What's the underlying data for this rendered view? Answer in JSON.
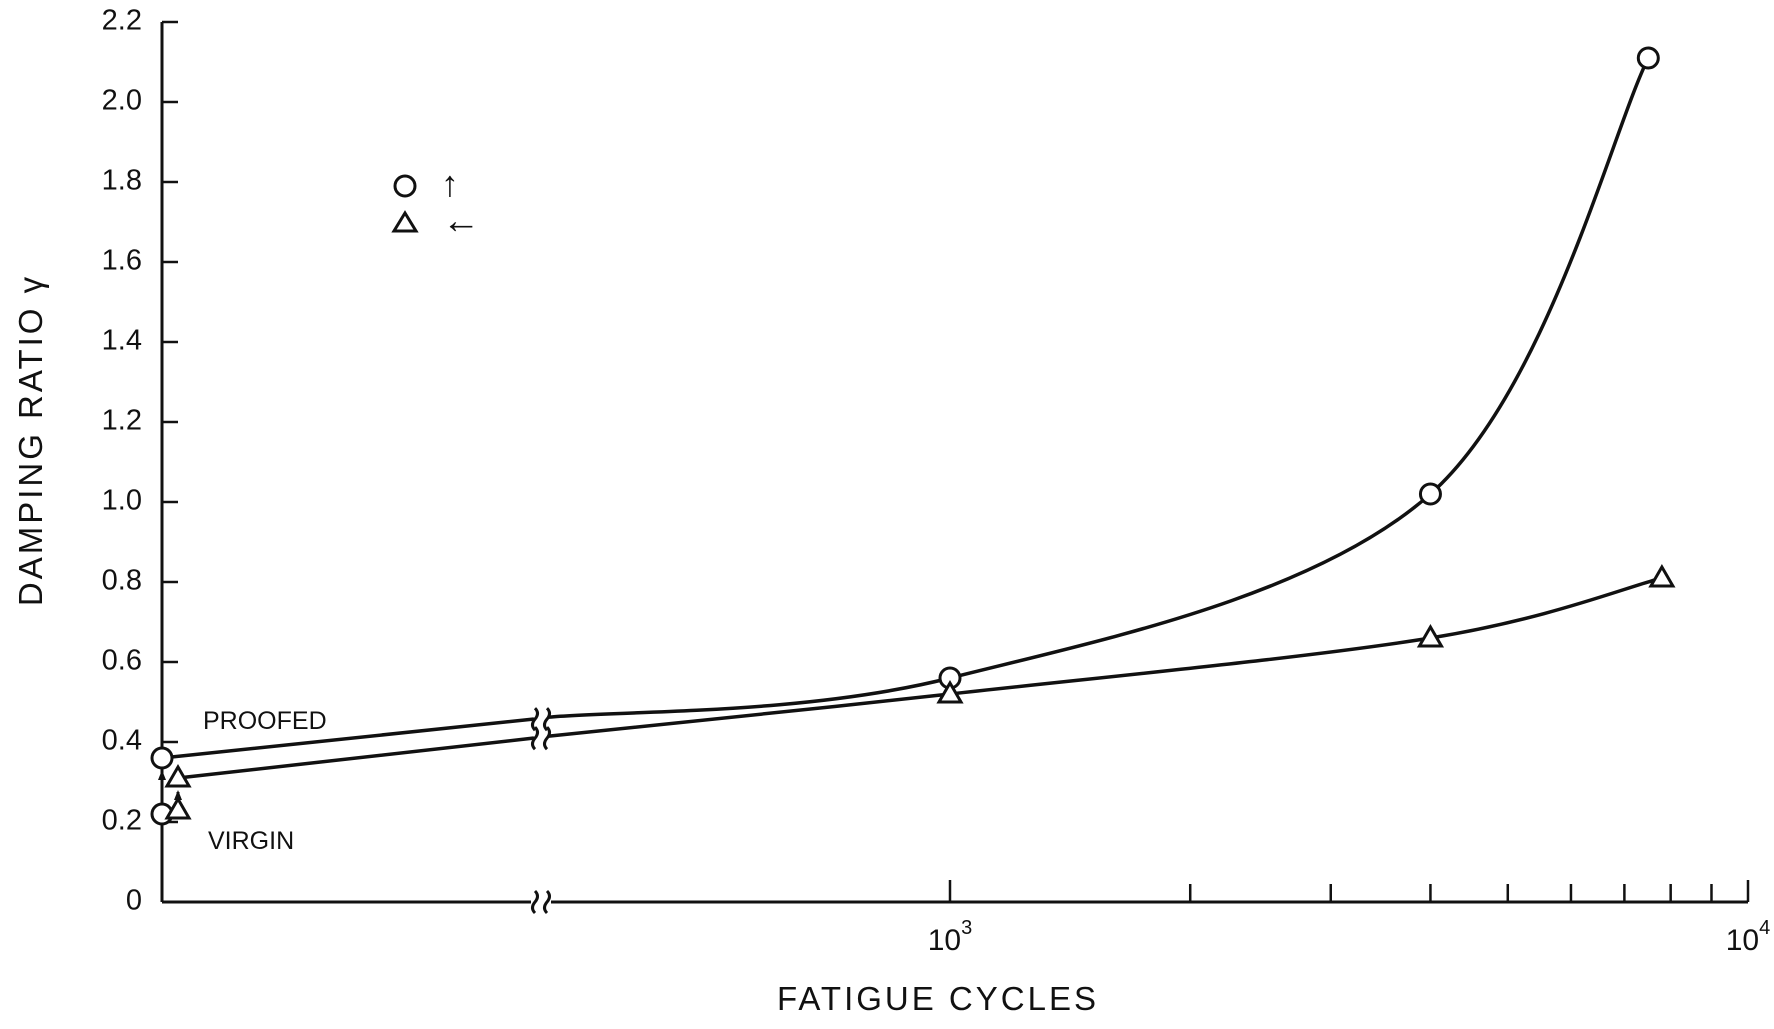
{
  "chart_data": {
    "type": "line",
    "title": "",
    "xlabel": "FATIGUE CYCLES",
    "ylabel": "DAMPING RATIO γ",
    "x_scale": "log (broken axis)",
    "xlim": [
      1000,
      10000
    ],
    "ylim": [
      0,
      2.2
    ],
    "y_ticks": [
      "0",
      "0.2",
      "0.4",
      "0.6",
      "0.8",
      "1.0",
      "1.2",
      "1.4",
      "1.6",
      "1.8",
      "2.0",
      "2.2"
    ],
    "x_tick_labels": [
      {
        "base": "10",
        "exp": "3",
        "value": 1000
      },
      {
        "base": "10",
        "exp": "4",
        "value": 10000
      }
    ],
    "x_minor_ticks": [
      2000,
      3000,
      4000,
      5000,
      6000,
      7000,
      8000,
      9000
    ],
    "grid": false,
    "legend": {
      "placement": "upper-left",
      "entries": [
        {
          "marker": "circle",
          "symbol": "↑"
        },
        {
          "marker": "triangle",
          "symbol": "←"
        }
      ]
    },
    "annotations": [
      {
        "text": "PROOFED"
      },
      {
        "text": "VIRGIN"
      }
    ],
    "series": [
      {
        "marker": "circle",
        "points": [
          {
            "x": 0,
            "y": 0.22
          },
          {
            "x": 0,
            "y": 0.36
          },
          {
            "x": 1000,
            "y": 0.56
          },
          {
            "x": 4000,
            "y": 1.02
          },
          {
            "x": 7500,
            "y": 2.11
          }
        ]
      },
      {
        "marker": "triangle",
        "points": [
          {
            "x": 0,
            "y": 0.23
          },
          {
            "x": 0,
            "y": 0.31
          },
          {
            "x": 1000,
            "y": 0.52
          },
          {
            "x": 4000,
            "y": 0.66
          },
          {
            "x": 7800,
            "y": 0.81
          }
        ]
      }
    ]
  }
}
